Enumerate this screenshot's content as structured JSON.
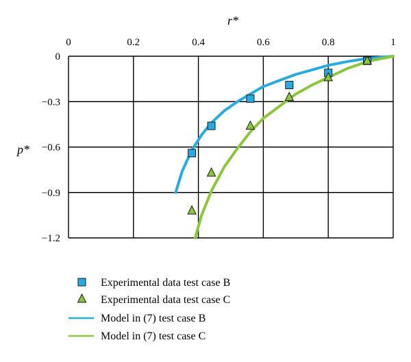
{
  "chart_data": {
    "type": "scatter",
    "xlabel": "r*",
    "ylabel": "p*",
    "xlim": [
      0,
      1
    ],
    "ylim": [
      -1.2,
      0
    ],
    "x_ticks": [
      "0",
      "0.2",
      "0.4",
      "0.6",
      "0.8",
      "1"
    ],
    "y_ticks": [
      "0",
      "−0.3",
      "−0.6",
      "−0.9",
      "−1.2"
    ],
    "x_tick_values": [
      0,
      0.2,
      0.4,
      0.6,
      0.8,
      1
    ],
    "y_tick_values": [
      0,
      -0.3,
      -0.6,
      -0.9,
      -1.2
    ],
    "x_axis_position": "top",
    "grid": true,
    "legend_position": "bottom",
    "series": [
      {
        "name": "Experimental data test case B",
        "kind": "marker",
        "marker": "square",
        "color": "#29ABE2",
        "points": [
          [
            0.38,
            -0.64
          ],
          [
            0.44,
            -0.46
          ],
          [
            0.56,
            -0.28
          ],
          [
            0.68,
            -0.19
          ],
          [
            0.8,
            -0.11
          ],
          [
            0.92,
            -0.03
          ]
        ]
      },
      {
        "name": "Experimental data test case C",
        "kind": "marker",
        "marker": "triangle",
        "color": "#8CC63F",
        "points": [
          [
            0.38,
            -1.02
          ],
          [
            0.44,
            -0.77
          ],
          [
            0.56,
            -0.46
          ],
          [
            0.68,
            -0.27
          ],
          [
            0.8,
            -0.14
          ],
          [
            0.92,
            -0.03
          ]
        ]
      },
      {
        "name": "Model in (7) test case B",
        "kind": "line",
        "color": "#29ABE2",
        "points": [
          [
            0.33,
            -0.9
          ],
          [
            0.35,
            -0.76
          ],
          [
            0.38,
            -0.62
          ],
          [
            0.41,
            -0.52
          ],
          [
            0.44,
            -0.44
          ],
          [
            0.48,
            -0.36
          ],
          [
            0.52,
            -0.3
          ],
          [
            0.56,
            -0.25
          ],
          [
            0.6,
            -0.2
          ],
          [
            0.65,
            -0.16
          ],
          [
            0.7,
            -0.12
          ],
          [
            0.75,
            -0.09
          ],
          [
            0.8,
            -0.06
          ],
          [
            0.86,
            -0.035
          ],
          [
            0.92,
            -0.015
          ],
          [
            1.0,
            0.0
          ]
        ]
      },
      {
        "name": "Model in (7) test case C",
        "kind": "line",
        "color": "#8CC63F",
        "points": [
          [
            0.39,
            -1.2
          ],
          [
            0.41,
            -1.05
          ],
          [
            0.44,
            -0.89
          ],
          [
            0.48,
            -0.73
          ],
          [
            0.52,
            -0.61
          ],
          [
            0.56,
            -0.5
          ],
          [
            0.6,
            -0.41
          ],
          [
            0.65,
            -0.33
          ],
          [
            0.7,
            -0.25
          ],
          [
            0.75,
            -0.19
          ],
          [
            0.8,
            -0.14
          ],
          [
            0.86,
            -0.08
          ],
          [
            0.92,
            -0.035
          ],
          [
            1.0,
            0.0
          ]
        ]
      }
    ]
  }
}
